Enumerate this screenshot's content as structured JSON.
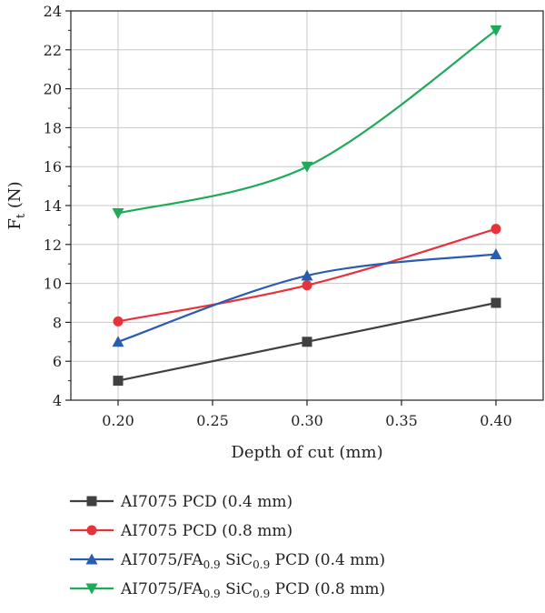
{
  "chart_data": {
    "type": "line",
    "xlabel": "Depth of cut (mm)",
    "ylabel": "F",
    "ylabel_sub": "t",
    "ylabel_unit": " (N)",
    "xlim": [
      0.175,
      0.425
    ],
    "ylim": [
      4,
      24
    ],
    "xticks": [
      0.2,
      0.25,
      0.3,
      0.35,
      0.4
    ],
    "xtick_labels": [
      "0.20",
      "0.25",
      "0.30",
      "0.35",
      "0.40"
    ],
    "yticks": [
      4,
      6,
      8,
      10,
      12,
      14,
      16,
      18,
      20,
      22,
      24
    ],
    "ytick_labels": [
      "4",
      "6",
      "8",
      "10",
      "12",
      "14",
      "16",
      "18",
      "20",
      "22",
      "24"
    ],
    "grid": true,
    "legend_position": "below",
    "x": [
      0.2,
      0.3,
      0.4
    ],
    "series": [
      {
        "label_parts": [
          {
            "t": "AI7075 PCD (0.4 mm)"
          }
        ],
        "values": [
          5.0,
          7.0,
          9.0
        ],
        "color": "#404040",
        "marker": "square"
      },
      {
        "label_parts": [
          {
            "t": "AI7075 PCD (0.8 mm)"
          }
        ],
        "values": [
          8.05,
          9.9,
          12.8
        ],
        "color": "#e8323a",
        "marker": "circle"
      },
      {
        "label_parts": [
          {
            "t": "AI7075/FA"
          },
          {
            "t": "0.9",
            "sub": true
          },
          {
            "t": " SiC"
          },
          {
            "t": "0.9",
            "sub": true
          },
          {
            "t": " PCD (0.4 mm)"
          }
        ],
        "values": [
          7.0,
          10.4,
          11.5
        ],
        "color": "#2a5db0",
        "marker": "triangle-up"
      },
      {
        "label_parts": [
          {
            "t": "AI7075/FA"
          },
          {
            "t": "0.9",
            "sub": true
          },
          {
            "t": " SiC"
          },
          {
            "t": "0.9",
            "sub": true
          },
          {
            "t": " PCD (0.8 mm)"
          }
        ],
        "values": [
          13.6,
          16.0,
          23.0
        ],
        "color": "#1faa5a",
        "marker": "triangle-down"
      }
    ]
  }
}
